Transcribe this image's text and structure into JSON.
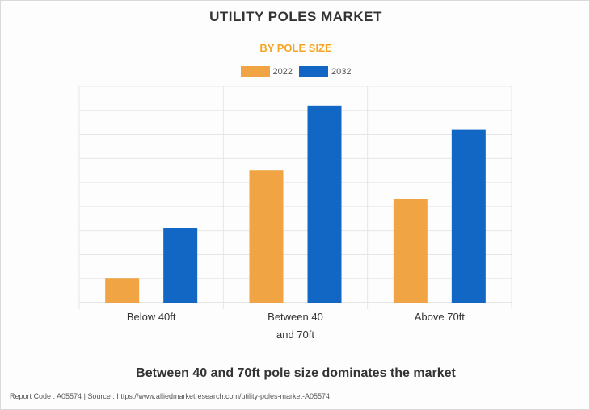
{
  "header": {
    "title": "UTILITY POLES MARKET",
    "subtitle": "BY POLE SIZE"
  },
  "chart_data": {
    "type": "bar",
    "categories": [
      [
        "Below 40ft"
      ],
      [
        "Between 40",
        "and 70ft"
      ],
      [
        "Above 70ft"
      ]
    ],
    "series": [
      {
        "name": "2022",
        "color": "#f0a444",
        "values": [
          1.0,
          5.5,
          4.3
        ]
      },
      {
        "name": "2032",
        "color": "#1266c4",
        "values": [
          3.1,
          8.2,
          7.2
        ]
      }
    ],
    "ylim": [
      0,
      9
    ],
    "y_gridlines": 9,
    "grid": true,
    "legend_position": "top-center",
    "y_axis_labels_shown": false
  },
  "headline": "Between 40 and 70ft pole size dominates the market",
  "footer": {
    "text": "Report Code : A05574  |  Source : https://www.alliedmarketresearch.com/utility-poles-market-A05574"
  }
}
